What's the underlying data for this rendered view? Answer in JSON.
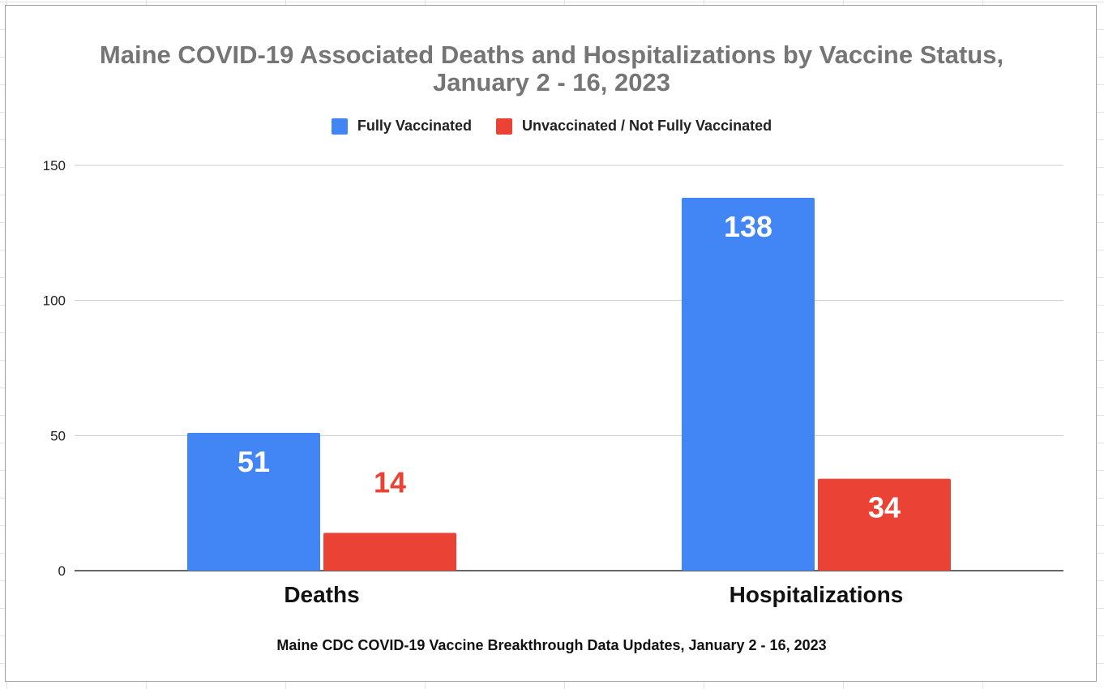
{
  "chart_data": {
    "type": "bar",
    "title_lines": [
      "Maine COVID-19 Associated Deaths and Hospitalizations by Vaccine Status,",
      "January 2 - 16, 2023"
    ],
    "categories": [
      "Deaths",
      "Hospitalizations"
    ],
    "series": [
      {
        "name": "Fully Vaccinated",
        "color": "#4285f4",
        "values": [
          51,
          138
        ],
        "labels": [
          "51",
          "138"
        ]
      },
      {
        "name": "Unvaccinated / Not Fully Vaccinated",
        "color": "#ea4335",
        "values": [
          14,
          34
        ],
        "labels": [
          "14",
          "34"
        ]
      }
    ],
    "ylim": [
      0,
      150
    ],
    "yticks": [
      0,
      50,
      100,
      150
    ],
    "ytick_labels": [
      "0",
      "50",
      "100",
      "150"
    ],
    "grid": true,
    "legend_position": "top",
    "xlabel": "Maine CDC COVID-19 Vaccine Breakthrough Data Updates, January 2 - 16, 2023",
    "ylabel": ""
  }
}
